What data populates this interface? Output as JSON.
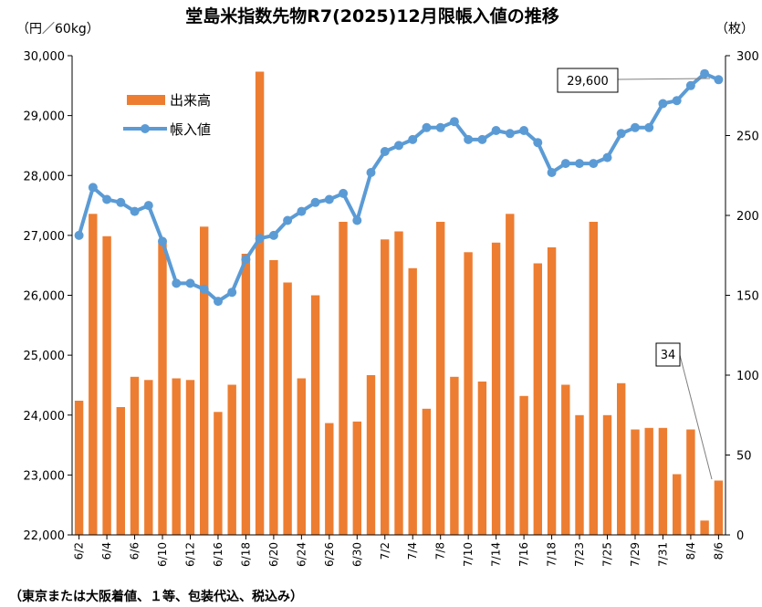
{
  "title": "堂島米指数先物R7(2025)12月限帳入値の推移",
  "left_unit": "（円／60kg）",
  "right_unit": "（枚）",
  "footnote": "（東京または大阪着値、１等、包装代込、税込み）",
  "callouts": {
    "price_last": "29,600",
    "volume_last": "34"
  },
  "colors": {
    "bar": "#ED7D31",
    "line": "#5B9BD5",
    "axis": "#000000"
  },
  "chart_data": {
    "type": "bar+line",
    "title": "堂島米指数先物R7(2025)12月限帳入値の推移",
    "left_axis": {
      "label": "（円／60kg）",
      "min": 22000,
      "max": 30000,
      "step": 1000,
      "tick_labels": [
        "22,000",
        "23,000",
        "24,000",
        "25,000",
        "26,000",
        "27,000",
        "28,000",
        "29,000",
        "30,000"
      ]
    },
    "right_axis": {
      "label": "（枚）",
      "min": 0,
      "max": 300,
      "step": 50,
      "tick_labels": [
        "0",
        "50",
        "100",
        "150",
        "200",
        "250",
        "300"
      ]
    },
    "x_tick_labels": [
      "6/2",
      "6/4",
      "6/6",
      "6/10",
      "6/12",
      "6/16",
      "6/18",
      "6/20",
      "6/24",
      "6/26",
      "6/30",
      "7/2",
      "7/4",
      "7/8",
      "7/10",
      "7/14",
      "7/16",
      "7/18",
      "7/23",
      "7/25",
      "7/29",
      "7/31",
      "8/4",
      "8/6"
    ],
    "series": [
      {
        "name": "出来高",
        "type": "bar",
        "axis": "right",
        "values": [
          84,
          201,
          187,
          80,
          99,
          97,
          183,
          98,
          97,
          193,
          77,
          94,
          176,
          290,
          172,
          158,
          98,
          150,
          70,
          196,
          71,
          100,
          185,
          190,
          167,
          79,
          196,
          99,
          177,
          96,
          183,
          201,
          87,
          170,
          180,
          94,
          75,
          196,
          75,
          95,
          66,
          67,
          67,
          38,
          66,
          9,
          34
        ]
      },
      {
        "name": "帳入値",
        "type": "line",
        "axis": "left",
        "values": [
          27000,
          27800,
          27600,
          27550,
          27400,
          27500,
          26900,
          26200,
          26200,
          26100,
          25900,
          26050,
          26600,
          26950,
          27000,
          27250,
          27400,
          27550,
          27600,
          27700,
          27250,
          28050,
          28400,
          28500,
          28600,
          28800,
          28800,
          28900,
          28600,
          28600,
          28750,
          28700,
          28750,
          28550,
          28050,
          28200,
          28200,
          28200,
          28300,
          28700,
          28800,
          28800,
          29200,
          29250,
          29500,
          29700,
          29600
        ]
      }
    ],
    "legend": {
      "position": "top-left",
      "entries": [
        "出来高",
        "帳入値"
      ]
    },
    "grid": false
  }
}
